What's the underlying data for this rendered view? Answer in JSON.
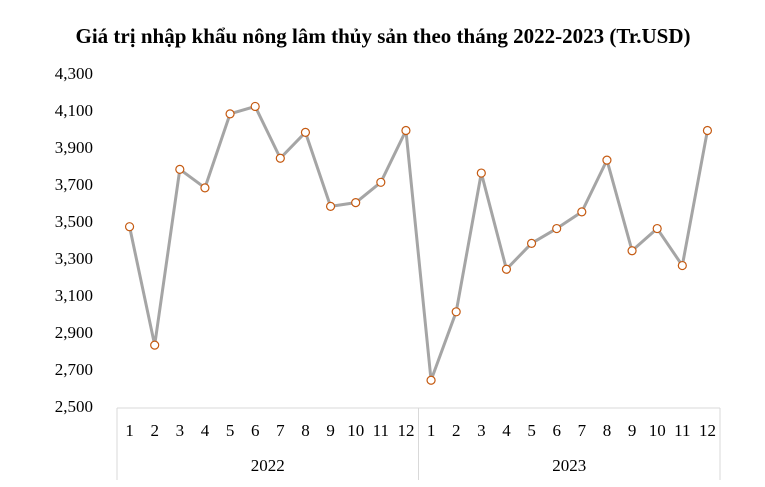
{
  "chart_data": {
    "type": "line",
    "title": "Giá trị nhập khẩu nông lâm thủy sản theo tháng 2022-2023 (Tr.USD)",
    "categories": [
      "1",
      "2",
      "3",
      "4",
      "5",
      "6",
      "7",
      "8",
      "9",
      "10",
      "11",
      "12",
      "1",
      "2",
      "3",
      "4",
      "5",
      "6",
      "7",
      "8",
      "9",
      "10",
      "11",
      "12"
    ],
    "groups": [
      "2022",
      "2023"
    ],
    "series": [
      {
        "color": "#a5a5a5",
        "marker_color": "#c55a11",
        "values": [
          3480,
          2840,
          3790,
          3690,
          4090,
          4130,
          3850,
          3990,
          3590,
          3610,
          3720,
          4000,
          2650,
          3020,
          3770,
          3250,
          3390,
          3470,
          3560,
          3840,
          3350,
          3470,
          3270,
          4000
        ]
      }
    ],
    "ylim": [
      2500,
      4300
    ],
    "yticks": [
      {
        "value": 2500,
        "label": "2,500"
      },
      {
        "value": 2700,
        "label": "2,700"
      },
      {
        "value": 2900,
        "label": "2,900"
      },
      {
        "value": 3100,
        "label": "3,100"
      },
      {
        "value": 3300,
        "label": "3,300"
      },
      {
        "value": 3500,
        "label": "3,500"
      },
      {
        "value": 3700,
        "label": "3,700"
      },
      {
        "value": 3900,
        "label": "3,900"
      },
      {
        "value": 4100,
        "label": "4,100"
      },
      {
        "value": 4300,
        "label": "4,300"
      }
    ],
    "grid": false
  }
}
